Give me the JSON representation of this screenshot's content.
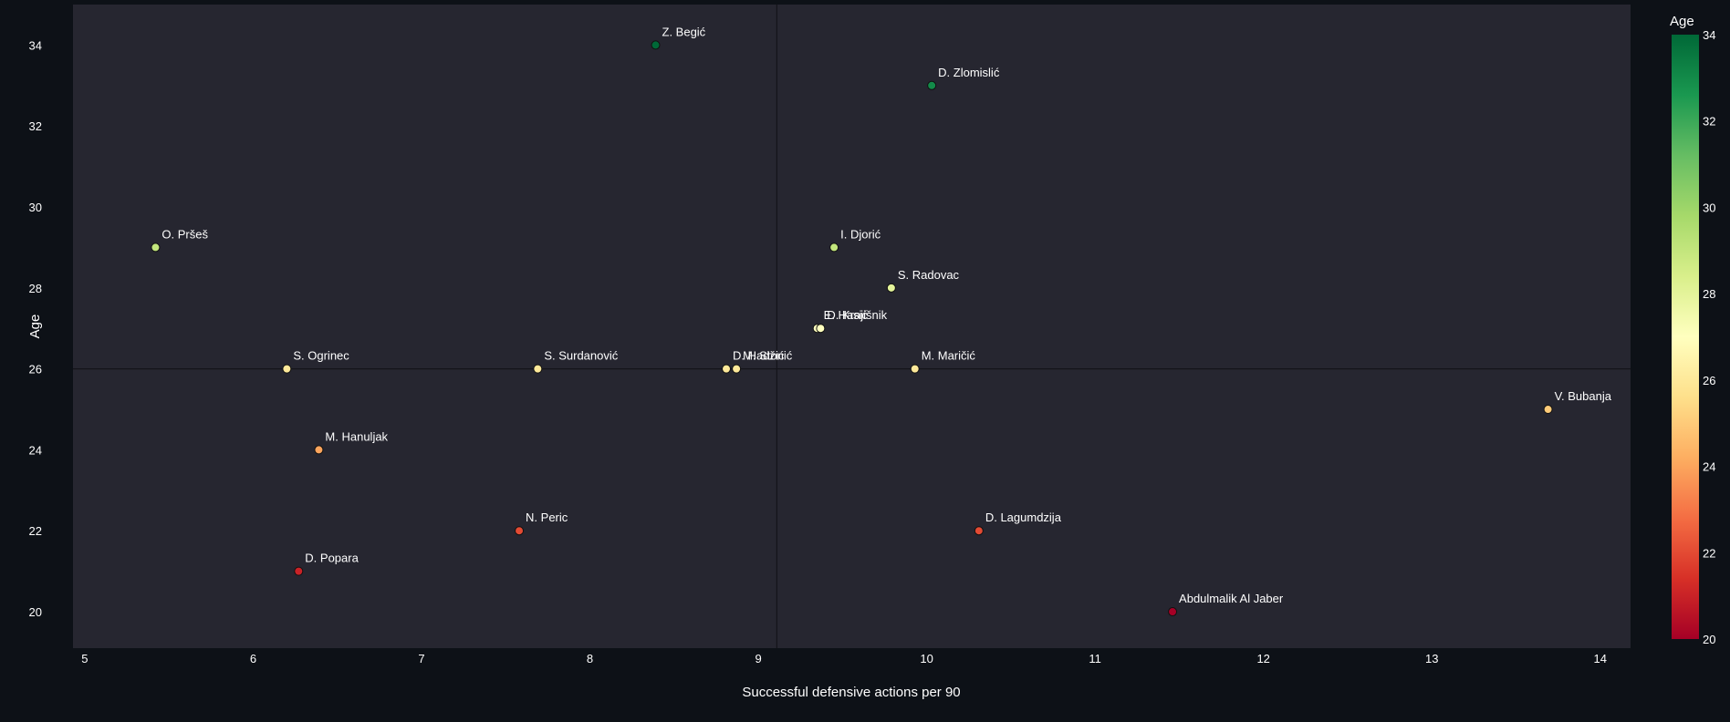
{
  "chart_data": {
    "type": "scatter",
    "xlabel": "Successful defensive actions per 90",
    "ylabel": "Age",
    "xlim": [
      4.93,
      14.18
    ],
    "ylim": [
      19.1,
      35.0
    ],
    "xticks": [
      5,
      6,
      7,
      8,
      9,
      10,
      11,
      12,
      13,
      14
    ],
    "yticks": [
      20,
      22,
      24,
      26,
      28,
      30,
      32,
      34
    ],
    "reference_lines": {
      "x": 9.11,
      "y": 26
    },
    "grid": false,
    "colorscale": {
      "title": "Age",
      "min": 20,
      "max": 34,
      "ticks": [
        20,
        22,
        24,
        26,
        28,
        30,
        32,
        34
      ],
      "colors": [
        "#a50026",
        "#d73027",
        "#f46d43",
        "#fdae61",
        "#fee08b",
        "#ffffbf",
        "#d9ef8b",
        "#a6d96a",
        "#66bd63",
        "#1a9850",
        "#006837"
      ]
    },
    "points": [
      {
        "name": "Z. Begić",
        "x": 8.39,
        "y": 34
      },
      {
        "name": "D. Zlomislić",
        "x": 10.03,
        "y": 33
      },
      {
        "name": "O. Pršeš",
        "x": 5.42,
        "y": 29
      },
      {
        "name": "I. Djorić",
        "x": 9.45,
        "y": 29
      },
      {
        "name": "S. Radovac",
        "x": 9.79,
        "y": 28
      },
      {
        "name": "E. Hasić",
        "x": 9.35,
        "y": 27
      },
      {
        "name": "D. Krajišnik",
        "x": 9.37,
        "y": 27
      },
      {
        "name": "S. Ogrinec",
        "x": 6.2,
        "y": 26
      },
      {
        "name": "S. Surdanović",
        "x": 7.69,
        "y": 26
      },
      {
        "name": "D. Hadžić",
        "x": 8.81,
        "y": 26
      },
      {
        "name": "M. Stonić",
        "x": 8.87,
        "y": 26
      },
      {
        "name": "M. Maričić",
        "x": 9.93,
        "y": 26
      },
      {
        "name": "V. Bubanja",
        "x": 13.69,
        "y": 25
      },
      {
        "name": "M. Hanuljak",
        "x": 6.39,
        "y": 24
      },
      {
        "name": "N. Peric",
        "x": 7.58,
        "y": 22
      },
      {
        "name": "D. Lagumdzija",
        "x": 10.31,
        "y": 22
      },
      {
        "name": "D. Popara",
        "x": 6.27,
        "y": 21
      },
      {
        "name": "Abdulmalik Al Jaber",
        "x": 11.46,
        "y": 20
      }
    ]
  }
}
